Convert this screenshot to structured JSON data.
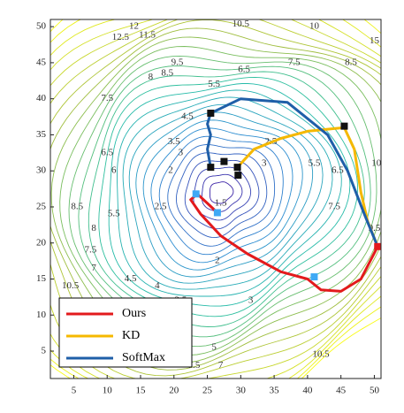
{
  "chart_data": {
    "type": "contour",
    "xlim": [
      1.5,
      51
    ],
    "ylim": [
      1.2,
      51
    ],
    "xticks": [
      5,
      10,
      15,
      20,
      25,
      30,
      35,
      40,
      45,
      50
    ],
    "yticks": [
      5,
      10,
      15,
      20,
      25,
      30,
      35,
      40,
      45,
      50
    ],
    "levels": [
      1.5,
      2,
      2.5,
      3,
      3.5,
      4,
      4.5,
      5,
      5.5,
      6,
      6.5,
      7,
      7.5,
      8,
      8.5,
      9,
      9.5,
      10,
      10.5,
      11,
      11.5,
      12,
      12.5,
      13,
      13.5,
      14,
      14.5,
      15
    ],
    "colormap": [
      "#3e26a8",
      "#2c8bd3",
      "#25bfa6",
      "#a5be3b",
      "#f9fb15"
    ],
    "contour_labels": [
      {
        "text": 10,
        "x": 41,
        "y": 50
      },
      {
        "text": 10.5,
        "x": 30,
        "y": 50.3
      },
      {
        "text": 12,
        "x": 14,
        "y": 50
      },
      {
        "text": 11.5,
        "x": 16,
        "y": 48.8
      },
      {
        "text": 12.5,
        "x": 12,
        "y": 48.5
      },
      {
        "text": 9.5,
        "x": 20.5,
        "y": 45
      },
      {
        "text": 8.5,
        "x": 19,
        "y": 43.5
      },
      {
        "text": 8,
        "x": 16.5,
        "y": 43
      },
      {
        "text": 7.5,
        "x": 10,
        "y": 40
      },
      {
        "text": 6.5,
        "x": 30.5,
        "y": 44
      },
      {
        "text": 5.5,
        "x": 26,
        "y": 42
      },
      {
        "text": 4.5,
        "x": 22,
        "y": 37.5
      },
      {
        "text": 3.5,
        "x": 20,
        "y": 34
      },
      {
        "text": 3,
        "x": 21,
        "y": 32.5
      },
      {
        "text": 2,
        "x": 19.5,
        "y": 30
      },
      {
        "text": 2.5,
        "x": 18,
        "y": 25
      },
      {
        "text": 1.5,
        "x": 27,
        "y": 25.5
      },
      {
        "text": 5.5,
        "x": 11,
        "y": 24
      },
      {
        "text": 6,
        "x": 11,
        "y": 30
      },
      {
        "text": 6.5,
        "x": 10,
        "y": 32.5
      },
      {
        "text": 8.5,
        "x": 5.5,
        "y": 25
      },
      {
        "text": 8,
        "x": 8,
        "y": 22
      },
      {
        "text": 7.5,
        "x": 7.5,
        "y": 19
      },
      {
        "text": 7,
        "x": 8,
        "y": 16.5
      },
      {
        "text": 4.5,
        "x": 13.5,
        "y": 15
      },
      {
        "text": 4,
        "x": 17.5,
        "y": 14
      },
      {
        "text": 3.5,
        "x": 21,
        "y": 12
      },
      {
        "text": 2,
        "x": 26.5,
        "y": 17.5
      },
      {
        "text": 3,
        "x": 31.5,
        "y": 12
      },
      {
        "text": 2.5,
        "x": 34.5,
        "y": 34
      },
      {
        "text": 3,
        "x": 33.5,
        "y": 31
      },
      {
        "text": 5.5,
        "x": 41,
        "y": 31
      },
      {
        "text": 6.5,
        "x": 44.5,
        "y": 30
      },
      {
        "text": 7.5,
        "x": 44,
        "y": 25
      },
      {
        "text": 9.5,
        "x": 50,
        "y": 22
      },
      {
        "text": 10,
        "x": 50.3,
        "y": 31
      },
      {
        "text": 7.5,
        "x": 38,
        "y": 45
      },
      {
        "text": 8.5,
        "x": 46.5,
        "y": 45
      },
      {
        "text": 5,
        "x": 26,
        "y": 5.5
      },
      {
        "text": 7.5,
        "x": 23,
        "y": 3
      },
      {
        "text": 7,
        "x": 27,
        "y": 3
      },
      {
        "text": 10.5,
        "x": 42,
        "y": 4.5
      },
      {
        "text": 15,
        "x": 50,
        "y": 48
      },
      {
        "text": 10.5,
        "x": 4.5,
        "y": 14
      }
    ],
    "series": [
      {
        "name": "Ours",
        "color": "#e31a1c",
        "x": [
          50.5,
          48,
          45,
          42,
          40,
          36,
          31,
          27,
          24,
          22.5,
          23.5,
          25,
          26.5
        ],
        "y": [
          19.5,
          15,
          13.3,
          13.5,
          15,
          16,
          18.5,
          21,
          24,
          26,
          26.8,
          25.5,
          24.2
        ],
        "markers": [
          {
            "x": 50.5,
            "y": 19.5,
            "color": "#e31a1c"
          },
          {
            "x": 41,
            "y": 15.3,
            "color": "#3fa9f5"
          },
          {
            "x": 23.3,
            "y": 26.8,
            "color": "#3fa9f5"
          },
          {
            "x": 26.5,
            "y": 24.2,
            "color": "#3fa9f5"
          }
        ]
      },
      {
        "name": "KD",
        "color": "#f5b800",
        "x": [
          29.5,
          32,
          36,
          40,
          45.5,
          47,
          48,
          49,
          50.5
        ],
        "y": [
          30.5,
          33,
          34.5,
          35.5,
          36,
          33,
          27,
          23,
          19.5
        ],
        "markers": [
          {
            "x": 29.5,
            "y": 30.5,
            "color": "#111"
          },
          {
            "x": 29.6,
            "y": 29.4,
            "color": "#111"
          }
        ]
      },
      {
        "name": "SoftMax",
        "color": "#1f5fa8",
        "x": [
          25.5,
          25,
          25.5,
          25,
          25.5,
          30,
          37,
          43,
          46,
          48.5,
          50.5
        ],
        "y": [
          30.5,
          33,
          35,
          36.5,
          38,
          40,
          39.5,
          35,
          30,
          24,
          19.5
        ],
        "markers": [
          {
            "x": 25.5,
            "y": 38,
            "color": "#111"
          },
          {
            "x": 25.5,
            "y": 30.5,
            "color": "#111"
          },
          {
            "x": 27.5,
            "y": 31.3,
            "color": "#111"
          },
          {
            "x": 45.5,
            "y": 36.2,
            "color": "#111"
          }
        ]
      }
    ]
  }
}
